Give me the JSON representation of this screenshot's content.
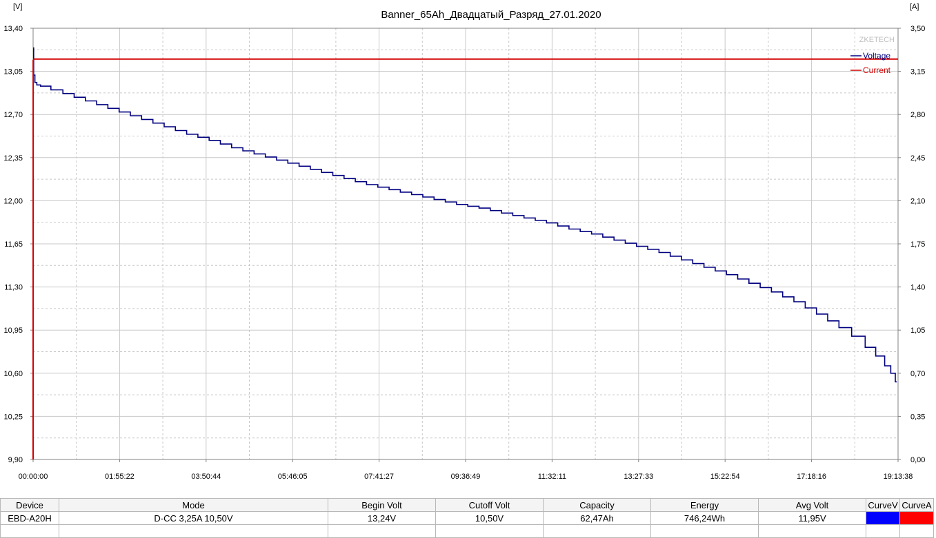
{
  "chart_data": {
    "type": "line",
    "title": "Banner_65Ah_Двадцатый_Разряд_27.01.2020",
    "watermark": "ZKETECH",
    "y_left_unit": "[V]",
    "y_right_unit": "[A]",
    "ylim_left": [
      9.9,
      13.4
    ],
    "ylim_right": [
      0.0,
      3.5
    ],
    "y_left_ticks": [
      "13,40",
      "13,05",
      "12,70",
      "12,35",
      "12,00",
      "11,65",
      "11,30",
      "10,95",
      "10,60",
      "10,25",
      "9,90"
    ],
    "y_right_ticks": [
      "3,50",
      "3,15",
      "2,80",
      "2,45",
      "2,10",
      "1,75",
      "1,40",
      "1,05",
      "0,70",
      "0,35",
      "0,00"
    ],
    "x_ticks": [
      "00:00:00",
      "01:55:22",
      "03:50:44",
      "05:46:05",
      "07:41:27",
      "09:36:49",
      "11:32:11",
      "13:27:33",
      "15:22:54",
      "17:18:16",
      "19:13:38"
    ],
    "xlim_hours": [
      0,
      19.227
    ],
    "grid": true,
    "legend_position": "top-right",
    "series": [
      {
        "name": "Voltage",
        "color": "#000080",
        "axis": "left",
        "x_hours": [
          0,
          0.02,
          0.05,
          0.1,
          0.2,
          0.5,
          1.0,
          1.5,
          2.0,
          2.5,
          3.0,
          3.5,
          4.0,
          4.5,
          5.0,
          5.5,
          6.0,
          6.5,
          7.0,
          7.5,
          8.0,
          8.5,
          9.0,
          9.5,
          10.0,
          10.5,
          11.0,
          11.5,
          12.0,
          12.5,
          13.0,
          13.5,
          14.0,
          14.5,
          15.0,
          15.5,
          16.0,
          16.5,
          17.0,
          17.5,
          18.0,
          18.3,
          18.6,
          18.8,
          19.0,
          19.1,
          19.2
        ],
        "values": [
          13.24,
          13.02,
          12.96,
          12.94,
          12.93,
          12.9,
          12.84,
          12.78,
          12.72,
          12.66,
          12.6,
          12.54,
          12.49,
          12.43,
          12.38,
          12.33,
          12.28,
          12.23,
          12.18,
          12.13,
          12.09,
          12.05,
          12.01,
          11.97,
          11.94,
          11.9,
          11.86,
          11.82,
          11.77,
          11.73,
          11.68,
          11.63,
          11.58,
          11.52,
          11.46,
          11.4,
          11.33,
          11.26,
          11.18,
          11.08,
          10.97,
          10.9,
          10.81,
          10.74,
          10.66,
          10.6,
          10.53
        ]
      },
      {
        "name": "Current",
        "color": "#d40000",
        "axis": "right",
        "x_hours": [
          0,
          0.001,
          0.02,
          19.227
        ],
        "values": [
          0.0,
          3.24,
          3.25,
          3.25
        ]
      }
    ]
  },
  "table": {
    "headers": [
      "Device",
      "Mode",
      "Begin Volt",
      "Cutoff Volt",
      "Capacity",
      "Energy",
      "Avg Volt",
      "CurveV",
      "CurveA"
    ],
    "row": [
      "EBD-A20H",
      "D-CC 3,25A 10,50V",
      "13,24V",
      "10,50V",
      "62,47Ah",
      "746,24Wh",
      "11,95V"
    ],
    "curve_v_color": "#0000ff",
    "curve_a_color": "#ff0000"
  }
}
